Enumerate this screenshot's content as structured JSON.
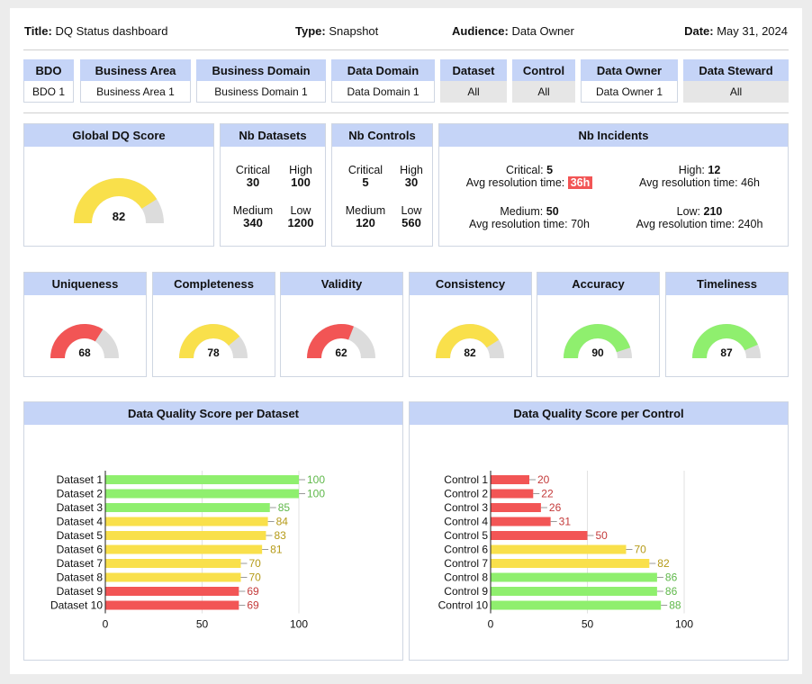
{
  "header": {
    "title_label": "Title:",
    "title_value": "DQ Status dashboard",
    "type_label": "Type:",
    "type_value": "Snapshot",
    "audience_label": "Audience:",
    "audience_value": "Data Owner",
    "date_label": "Date:",
    "date_value": "May 31, 2024"
  },
  "filters": [
    {
      "label": "BDO",
      "value": "BDO 1",
      "state": "selected"
    },
    {
      "label": "Business Area",
      "value": "Business Area 1",
      "state": "selected"
    },
    {
      "label": "Business Domain",
      "value": "Business Domain 1",
      "state": "selected"
    },
    {
      "label": "Data Domain",
      "value": "Data Domain 1",
      "state": "selected"
    },
    {
      "label": "Dataset",
      "value": "All",
      "state": "all"
    },
    {
      "label": "Control",
      "value": "All",
      "state": "all"
    },
    {
      "label": "Data Owner",
      "value": "Data Owner 1",
      "state": "selected"
    },
    {
      "label": "Data Steward",
      "value": "All",
      "state": "all"
    }
  ],
  "global_score": {
    "title": "Global DQ Score",
    "value": 82,
    "color": "#f9e04b"
  },
  "nb_datasets": {
    "title": "Nb Datasets",
    "critical_label": "Critical",
    "critical": "30",
    "high_label": "High",
    "high": "100",
    "medium_label": "Medium",
    "medium": "340",
    "low_label": "Low",
    "low": "1200"
  },
  "nb_controls": {
    "title": "Nb Controls",
    "critical_label": "Critical",
    "critical": "5",
    "high_label": "High",
    "high": "30",
    "medium_label": "Medium",
    "medium": "120",
    "low_label": "Low",
    "low": "560"
  },
  "nb_incidents": {
    "title": "Nb Incidents",
    "avg_label": "Avg resolution time:",
    "critical_label": "Critical:",
    "critical": "5",
    "critical_time": "36h",
    "high_label": "High:",
    "high": "12",
    "high_time": "46h",
    "medium_label": "Medium:",
    "medium": "50",
    "medium_time": "70h",
    "low_label": "Low:",
    "low": "210",
    "low_time": "240h"
  },
  "dimensions": [
    {
      "name": "Uniqueness",
      "value": 68,
      "color": "#f25555"
    },
    {
      "name": "Completeness",
      "value": 78,
      "color": "#f9e04b"
    },
    {
      "name": "Validity",
      "value": 62,
      "color": "#f25555"
    },
    {
      "name": "Consistency",
      "value": 82,
      "color": "#f9e04b"
    },
    {
      "name": "Accuracy",
      "value": 90,
      "color": "#8fef6e"
    },
    {
      "name": "Timeliness",
      "value": 87,
      "color": "#8fef6e"
    }
  ],
  "colors": {
    "red": "#f25555",
    "yellow": "#f9e04b",
    "green": "#8fef6e",
    "gauge_track": "#dcdcdc",
    "header_blue": "#c5d4f7",
    "label_red": "#c43a3a",
    "label_yellow": "#b59a17",
    "label_green": "#5fb84a"
  },
  "chart_data": [
    {
      "type": "bar",
      "orientation": "horizontal",
      "title": "Data Quality Score per Dataset",
      "categories": [
        "Dataset 1",
        "Dataset 2",
        "Dataset 3",
        "Dataset 4",
        "Dataset 5",
        "Dataset 6",
        "Dataset 7",
        "Dataset 8",
        "Dataset 9",
        "Dataset 10"
      ],
      "values": [
        100,
        100,
        85,
        84,
        83,
        81,
        70,
        70,
        69,
        69
      ],
      "xlim": [
        0,
        100
      ],
      "xticks": [
        0,
        50,
        100
      ],
      "grid": true
    },
    {
      "type": "bar",
      "orientation": "horizontal",
      "title": "Data Quality Score per Control",
      "categories": [
        "Control 1",
        "Control 2",
        "Control 3",
        "Control 4",
        "Control 5",
        "Control 6",
        "Control 7",
        "Control 8",
        "Control 9",
        "Control 10"
      ],
      "values": [
        20,
        22,
        26,
        31,
        50,
        70,
        82,
        86,
        86,
        88
      ],
      "xlim": [
        0,
        100
      ],
      "xticks": [
        0,
        50,
        100
      ],
      "grid": true
    }
  ]
}
